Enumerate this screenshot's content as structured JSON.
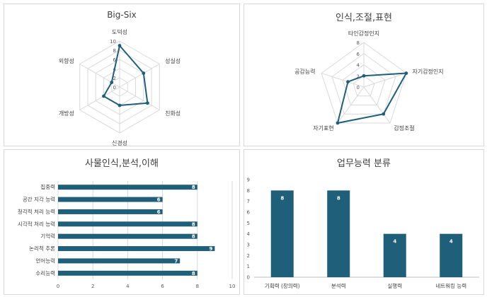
{
  "chart_data": [
    {
      "type": "radar",
      "title": "Big-Six",
      "categories": [
        "도덕성",
        "성실성",
        "친화성",
        "신경성",
        "개방성",
        "외향성"
      ],
      "series": [
        {
          "values": [
            9,
            6,
            7,
            4,
            4,
            2
          ]
        }
      ],
      "rlim": [
        0,
        10
      ],
      "rticks": [
        0,
        2,
        4,
        6,
        8,
        10
      ],
      "grid": true,
      "color": "#1f5f7a"
    },
    {
      "type": "radar",
      "title": "인식,조절,표현",
      "categories": [
        "타인감정인지",
        "자기감정인지",
        "감정조절",
        "자기표현",
        "공감능력"
      ],
      "series": [
        {
          "values": [
            2,
            8,
            6,
            8,
            3
          ]
        }
      ],
      "rlim": [
        0,
        8
      ],
      "rticks": [
        0,
        2,
        4,
        6,
        8
      ],
      "grid": true,
      "color": "#1f5f7a"
    },
    {
      "type": "bar",
      "orientation": "horizontal",
      "title": "사물인식,분석,이해",
      "categories": [
        "집중력",
        "공간 지각 능력",
        "청각적 처리 능력",
        "시각적 처리 능력",
        "기억력",
        "논리적 추론",
        "언어능력",
        "수리능력"
      ],
      "values": [
        8,
        6,
        6,
        8,
        8,
        9,
        7,
        8
      ],
      "xlim": [
        0,
        10
      ],
      "xticks": [
        0,
        2,
        4,
        6,
        8,
        10
      ],
      "grid": true,
      "data_labels": true,
      "color": "#1f5f7a"
    },
    {
      "type": "bar",
      "title": "업무능력 분류",
      "categories": [
        "기획력 (창의력)",
        "분석력",
        "실행력",
        "네트워킹 능력"
      ],
      "values": [
        8,
        8,
        4,
        4
      ],
      "ylim": [
        0,
        9
      ],
      "yticks": [
        0,
        1,
        2,
        3,
        4,
        5,
        6,
        7,
        8,
        9
      ],
      "grid": false,
      "data_labels": true,
      "color": "#1f5f7a"
    }
  ]
}
